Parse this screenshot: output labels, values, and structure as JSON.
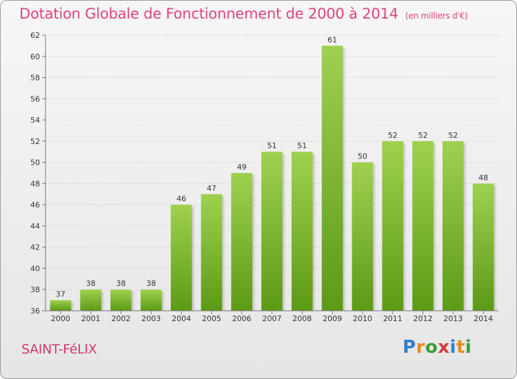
{
  "header": {
    "title": "Dotation Globale de Fonctionnement de 2000 à 2014",
    "subtitle": "(en milliers d'€)"
  },
  "footer": {
    "commune": "SAINT-FéLIX",
    "logo": [
      "P",
      "r",
      "o",
      "x",
      "i",
      "t",
      "i"
    ],
    "logo_colors": [
      "#2f7fd0",
      "#e88a1a",
      "#3aa03a",
      "#d23a3a",
      "#2f7fd0",
      "#e88a1a",
      "#3aa03a"
    ]
  },
  "chart_data": {
    "type": "bar",
    "title": "Dotation Globale de Fonctionnement de 2000 à 2014",
    "subtitle": "(en milliers d'€)",
    "categories": [
      "2000",
      "2001",
      "2002",
      "2003",
      "2004",
      "2005",
      "2006",
      "2007",
      "2008",
      "2009",
      "2010",
      "2011",
      "2012",
      "2013",
      "2014"
    ],
    "values": [
      37,
      38,
      38,
      38,
      46,
      47,
      49,
      51,
      51,
      61,
      50,
      52,
      52,
      52,
      48
    ],
    "ylim": [
      36,
      62
    ],
    "yticks": [
      36,
      38,
      40,
      42,
      44,
      46,
      48,
      50,
      52,
      54,
      56,
      58,
      60,
      62
    ],
    "grid": true,
    "bar_color_top": "#9fd14f",
    "bar_color_bottom": "#5c9a16"
  }
}
